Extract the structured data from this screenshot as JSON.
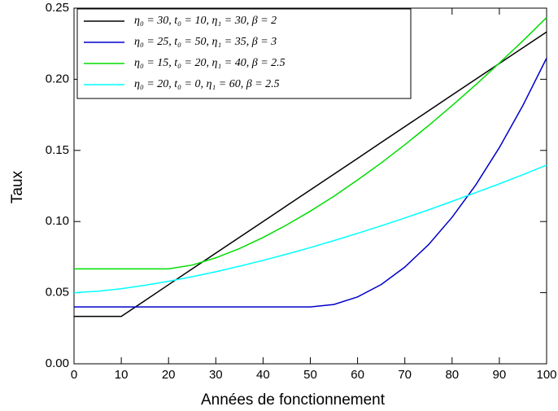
{
  "chart_data": {
    "type": "line",
    "xlabel": "Années de fonctionnement",
    "ylabel": "Taux",
    "x": [
      0,
      5,
      10,
      15,
      20,
      25,
      30,
      35,
      40,
      45,
      50,
      55,
      60,
      65,
      70,
      75,
      80,
      85,
      90,
      95,
      100
    ],
    "xlim": [
      0,
      100
    ],
    "xticks": [
      0,
      10,
      20,
      30,
      40,
      50,
      60,
      70,
      80,
      90,
      100
    ],
    "ylim": [
      0,
      0.25
    ],
    "yticks": [
      {
        "value": 0,
        "label": "0.00"
      },
      {
        "value": 0.05,
        "label": "0.05"
      },
      {
        "value": 0.1,
        "label": "0.10"
      },
      {
        "value": 0.15,
        "label": "0.15"
      },
      {
        "value": 0.2,
        "label": "0.20"
      },
      {
        "value": 0.25,
        "label": "0.25"
      }
    ],
    "legend_position": "upper left",
    "series": [
      {
        "name": "η₀ = 30,  t₀ = 10,  η₁ = 30,  β = 2",
        "color": "#000000",
        "values": [
          0.0333,
          0.0333,
          0.0333,
          0.0444,
          0.0556,
          0.0667,
          0.0778,
          0.0889,
          0.1,
          0.1111,
          0.1222,
          0.1333,
          0.1444,
          0.1556,
          0.1667,
          0.1778,
          0.1889,
          0.2,
          0.2111,
          0.2222,
          0.2333
        ]
      },
      {
        "name": "η₀ = 25,  t₀ = 50,  η₁ = 35,  β = 3",
        "color": "#0000cc",
        "values": [
          0.04,
          0.04,
          0.04,
          0.04,
          0.04,
          0.04,
          0.04,
          0.04,
          0.04,
          0.04,
          0.04,
          0.0417,
          0.047,
          0.0557,
          0.068,
          0.0837,
          0.103,
          0.1257,
          0.152,
          0.1817,
          0.2149
        ]
      },
      {
        "name": "η₀ = 15,  t₀ = 20,  η₁ = 40,  β = 2.5",
        "color": "#00dd00",
        "values": [
          0.0667,
          0.0667,
          0.0667,
          0.0667,
          0.0667,
          0.0694,
          0.0745,
          0.081,
          0.0888,
          0.0976,
          0.1073,
          0.1178,
          0.1292,
          0.1412,
          0.154,
          0.1674,
          0.1815,
          0.1961,
          0.2114,
          0.2271,
          0.2434
        ]
      },
      {
        "name": "η₀ = 20,  t₀ = 0,  η₁ = 60,  β = 2.5",
        "color": "#00ffff",
        "values": [
          0.05,
          0.051,
          0.0528,
          0.0552,
          0.058,
          0.0612,
          0.0647,
          0.0686,
          0.0727,
          0.0771,
          0.0817,
          0.0866,
          0.0917,
          0.097,
          0.1025,
          0.1082,
          0.1142,
          0.1203,
          0.1265,
          0.133,
          0.1397
        ]
      }
    ]
  }
}
